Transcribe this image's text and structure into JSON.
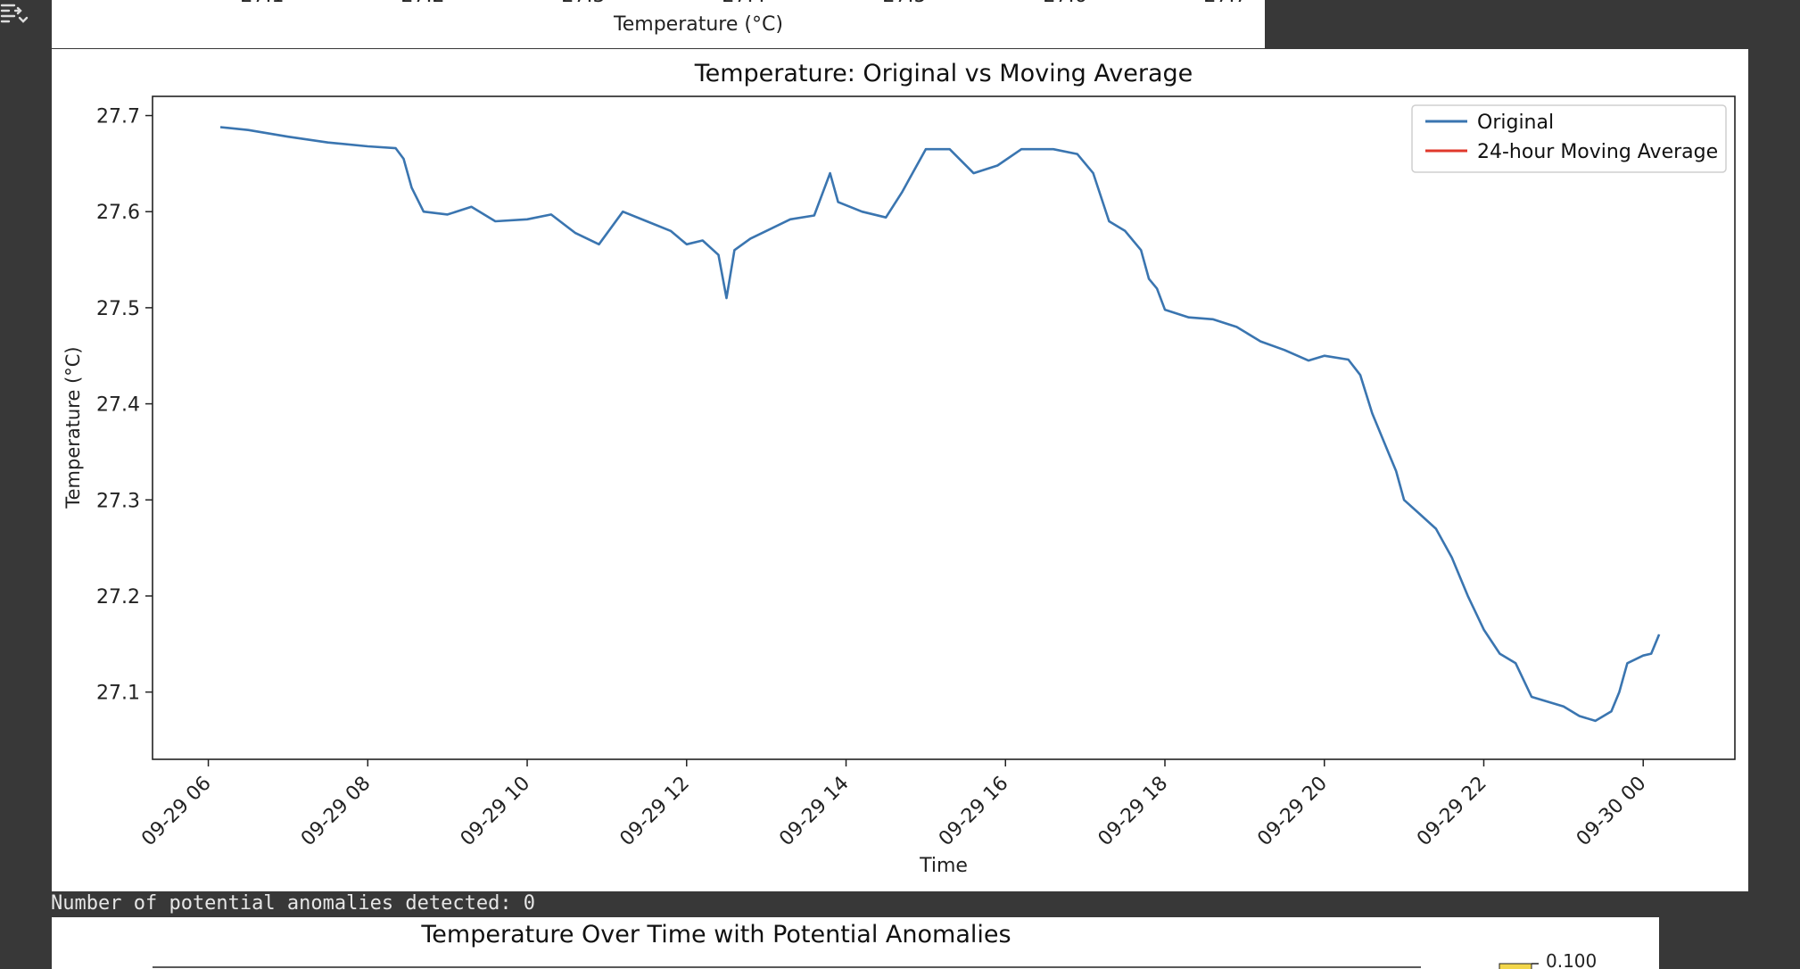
{
  "top_panel": {
    "xaxis_label": "Temperature (°C)",
    "tick_labels": [
      "27.1",
      "27.2",
      "27.3",
      "27.4",
      "27.5",
      "27.6",
      "27.7"
    ]
  },
  "chart_data": {
    "type": "line",
    "title": "Temperature: Original vs Moving Average",
    "xlabel": "Time",
    "ylabel": "Temperature (°C)",
    "ylim": [
      27.03,
      27.72
    ],
    "yticks": [
      "27.1",
      "27.2",
      "27.3",
      "27.4",
      "27.5",
      "27.6",
      "27.7"
    ],
    "xticks": [
      "09-29 06",
      "09-29 08",
      "09-29 10",
      "09-29 12",
      "09-29 14",
      "09-29 16",
      "09-29 18",
      "09-29 20",
      "09-29 22",
      "09-30 00"
    ],
    "xtick_hours": [
      6,
      8,
      10,
      12,
      14,
      16,
      18,
      20,
      22,
      24
    ],
    "xlim_hours": [
      5.3,
      25.15
    ],
    "x_unit": "hours since 09-29 00:00",
    "grid": false,
    "legend_position": "top-right",
    "series": [
      {
        "name": "Original",
        "color": "#3a75b0",
        "points": [
          [
            6.15,
            27.688
          ],
          [
            6.5,
            27.685
          ],
          [
            7.0,
            27.678
          ],
          [
            7.5,
            27.672
          ],
          [
            8.0,
            27.668
          ],
          [
            8.35,
            27.666
          ],
          [
            8.45,
            27.655
          ],
          [
            8.55,
            27.625
          ],
          [
            8.7,
            27.6
          ],
          [
            9.0,
            27.597
          ],
          [
            9.3,
            27.605
          ],
          [
            9.6,
            27.59
          ],
          [
            10.0,
            27.592
          ],
          [
            10.3,
            27.597
          ],
          [
            10.6,
            27.578
          ],
          [
            10.9,
            27.566
          ],
          [
            11.2,
            27.6
          ],
          [
            11.5,
            27.59
          ],
          [
            11.8,
            27.58
          ],
          [
            12.0,
            27.566
          ],
          [
            12.2,
            27.57
          ],
          [
            12.4,
            27.555
          ],
          [
            12.5,
            27.51
          ],
          [
            12.6,
            27.56
          ],
          [
            12.8,
            27.572
          ],
          [
            13.0,
            27.58
          ],
          [
            13.3,
            27.592
          ],
          [
            13.6,
            27.596
          ],
          [
            13.8,
            27.64
          ],
          [
            13.9,
            27.61
          ],
          [
            14.2,
            27.6
          ],
          [
            14.5,
            27.594
          ],
          [
            14.7,
            27.62
          ],
          [
            15.0,
            27.665
          ],
          [
            15.3,
            27.665
          ],
          [
            15.6,
            27.64
          ],
          [
            15.9,
            27.648
          ],
          [
            16.2,
            27.665
          ],
          [
            16.6,
            27.665
          ],
          [
            16.9,
            27.66
          ],
          [
            17.1,
            27.64
          ],
          [
            17.3,
            27.59
          ],
          [
            17.5,
            27.58
          ],
          [
            17.7,
            27.56
          ],
          [
            17.8,
            27.53
          ],
          [
            17.9,
            27.52
          ],
          [
            18.0,
            27.498
          ],
          [
            18.3,
            27.49
          ],
          [
            18.6,
            27.488
          ],
          [
            18.9,
            27.48
          ],
          [
            19.2,
            27.465
          ],
          [
            19.5,
            27.456
          ],
          [
            19.8,
            27.445
          ],
          [
            20.0,
            27.45
          ],
          [
            20.3,
            27.446
          ],
          [
            20.45,
            27.43
          ],
          [
            20.6,
            27.39
          ],
          [
            20.8,
            27.35
          ],
          [
            20.9,
            27.33
          ],
          [
            21.0,
            27.3
          ],
          [
            21.2,
            27.285
          ],
          [
            21.4,
            27.27
          ],
          [
            21.6,
            27.24
          ],
          [
            21.8,
            27.2
          ],
          [
            22.0,
            27.165
          ],
          [
            22.2,
            27.14
          ],
          [
            22.4,
            27.13
          ],
          [
            22.6,
            27.095
          ],
          [
            22.8,
            27.09
          ],
          [
            23.0,
            27.085
          ],
          [
            23.2,
            27.075
          ],
          [
            23.4,
            27.07
          ],
          [
            23.6,
            27.08
          ],
          [
            23.7,
            27.1
          ],
          [
            23.8,
            27.13
          ],
          [
            24.0,
            27.138
          ],
          [
            24.1,
            27.14
          ],
          [
            24.2,
            27.16
          ]
        ]
      },
      {
        "name": "24-hour Moving Average",
        "color": "#e0382b",
        "points": []
      }
    ]
  },
  "console": {
    "text": "Number of potential anomalies detected: 0"
  },
  "bottom_panel": {
    "title": "Temperature Over Time with Potential Anomalies",
    "colorbar_tick": "0.100"
  }
}
